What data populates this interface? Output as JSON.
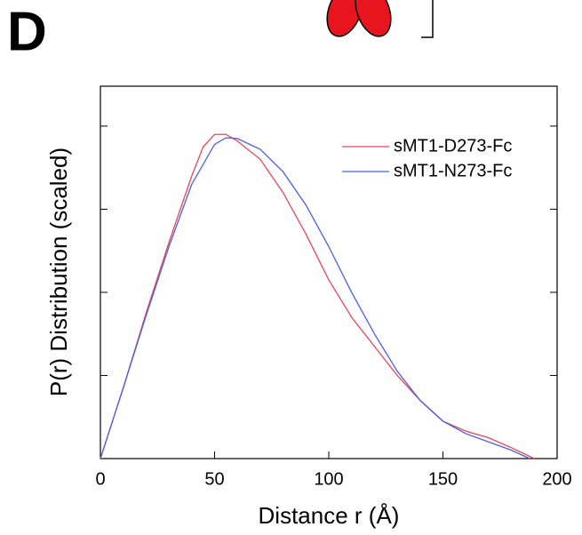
{
  "panel_label": "D",
  "chart_data": {
    "type": "line",
    "x_label": "Distance r (Å)",
    "y_label": "P(r) Distribution (scaled)",
    "xlim": [
      0,
      200
    ],
    "xticks": [
      0,
      50,
      100,
      150,
      200
    ],
    "ylim": [
      0,
      4.48
    ],
    "yticks": [
      0,
      1,
      2,
      3,
      4
    ],
    "legend": "upper right",
    "series": [
      {
        "name": "sMT1-D273-Fc",
        "color": "#e8455a",
        "x": [
          0,
          10,
          20,
          30,
          40,
          45,
          50,
          55,
          60,
          70,
          80,
          90,
          100,
          110,
          120,
          130,
          140,
          150,
          160,
          170,
          180,
          190
        ],
        "values": [
          0,
          0.85,
          1.75,
          2.6,
          3.4,
          3.75,
          3.9,
          3.9,
          3.82,
          3.6,
          3.2,
          2.7,
          2.15,
          1.7,
          1.35,
          1.0,
          0.7,
          0.45,
          0.33,
          0.25,
          0.13,
          0
        ]
      },
      {
        "name": "sMT1-N273-Fc",
        "color": "#4a5ee8",
        "x": [
          0,
          10,
          20,
          30,
          40,
          50,
          55,
          60,
          70,
          80,
          90,
          100,
          110,
          120,
          130,
          140,
          150,
          160,
          170,
          180,
          188
        ],
        "values": [
          0,
          0.85,
          1.72,
          2.55,
          3.3,
          3.78,
          3.86,
          3.85,
          3.72,
          3.45,
          3.05,
          2.55,
          2.0,
          1.5,
          1.05,
          0.7,
          0.45,
          0.3,
          0.2,
          0.1,
          0
        ]
      }
    ]
  }
}
